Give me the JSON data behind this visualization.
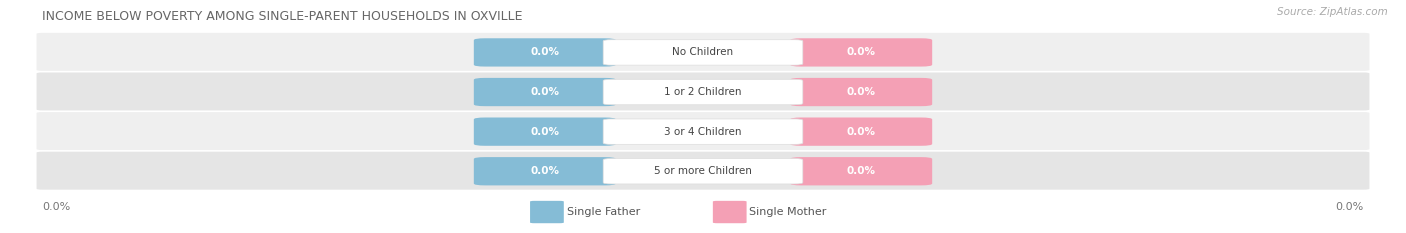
{
  "title": "INCOME BELOW POVERTY AMONG SINGLE-PARENT HOUSEHOLDS IN OXVILLE",
  "source": "Source: ZipAtlas.com",
  "categories": [
    "No Children",
    "1 or 2 Children",
    "3 or 4 Children",
    "5 or more Children"
  ],
  "father_values": [
    0.0,
    0.0,
    0.0,
    0.0
  ],
  "mother_values": [
    0.0,
    0.0,
    0.0,
    0.0
  ],
  "father_color": "#85bcd6",
  "mother_color": "#f4a0b5",
  "background_color": "#ffffff",
  "row_bg_even": "#efefef",
  "row_bg_odd": "#e5e5e5",
  "legend_father": "Single Father",
  "legend_mother": "Single Mother",
  "left_axis_label": "0.0%",
  "right_axis_label": "0.0%"
}
